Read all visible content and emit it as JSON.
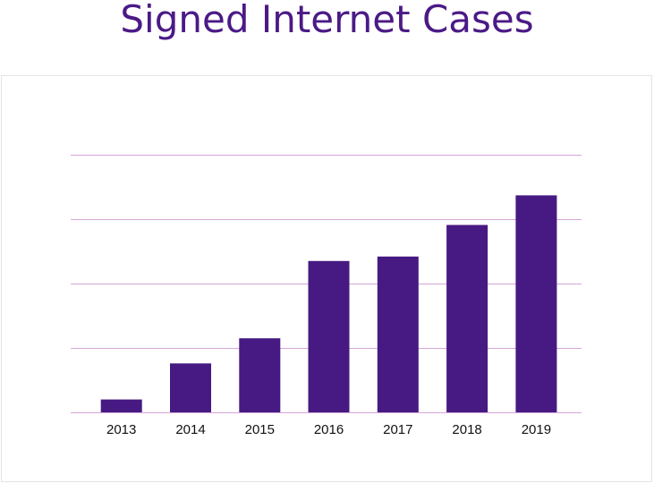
{
  "title": "Signed Internet Cases",
  "colors": {
    "bar": "#461a82",
    "gridline": "#d7a6d9",
    "title": "#4b1a86"
  },
  "chart_data": {
    "type": "bar",
    "title": "Signed Internet Cases",
    "xlabel": "",
    "ylabel": "",
    "categories": [
      "2013",
      "2014",
      "2015",
      "2016",
      "2017",
      "2018",
      "2019"
    ],
    "values": [
      0.2,
      0.76,
      1.15,
      2.35,
      2.42,
      2.91,
      3.37
    ],
    "ylim": [
      0,
      4
    ],
    "grid": true,
    "legend": "none"
  }
}
